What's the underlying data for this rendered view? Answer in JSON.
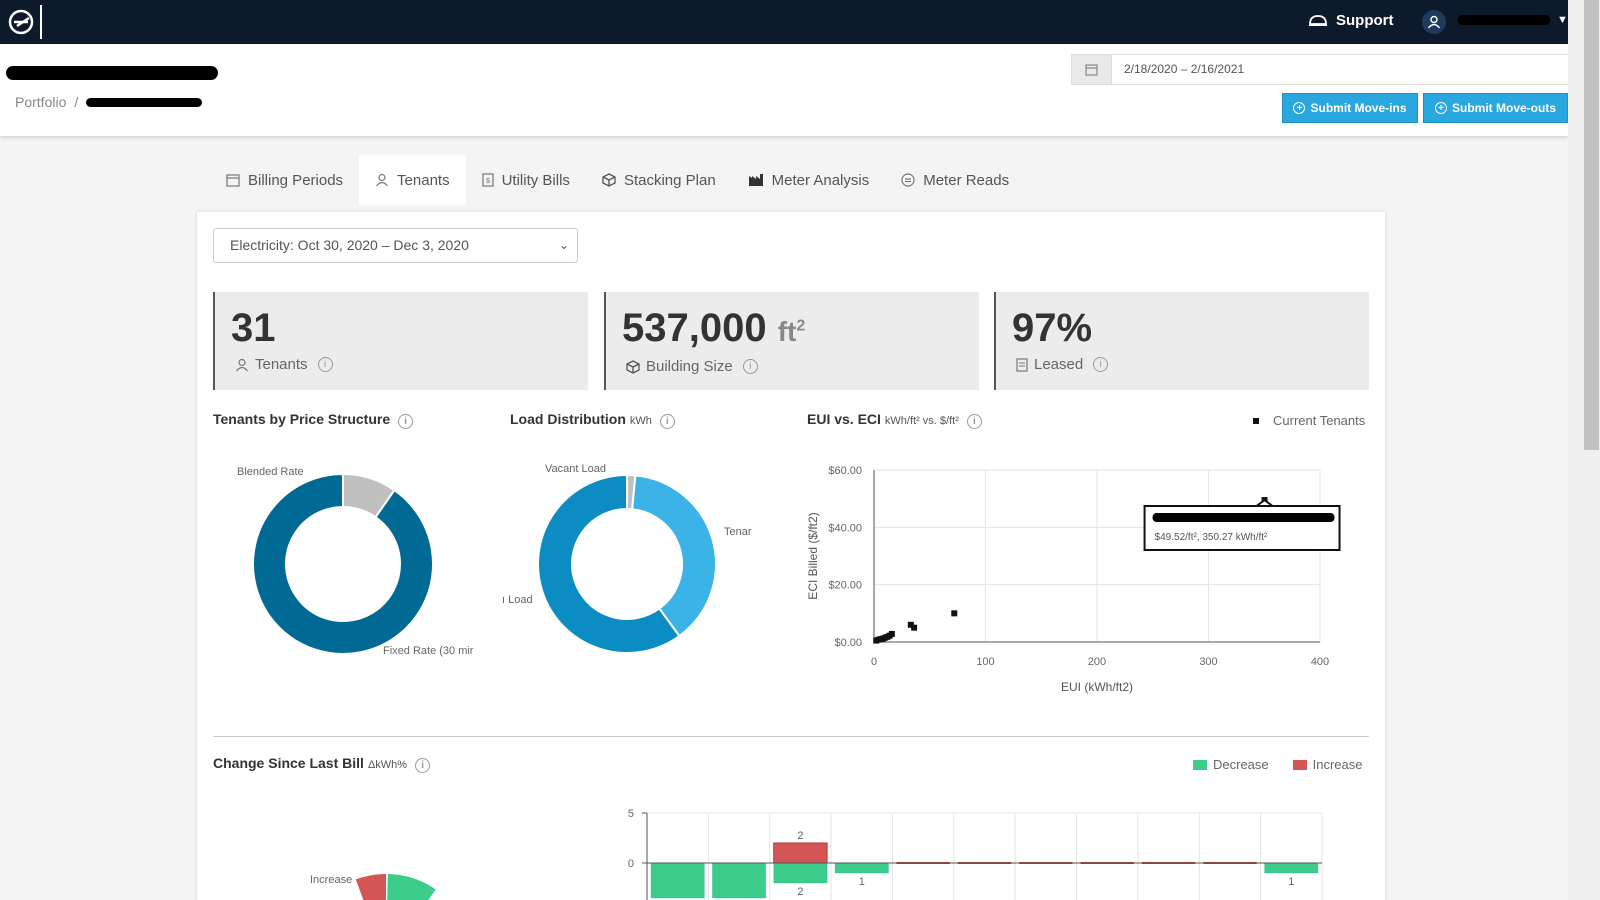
{
  "topbar": {
    "support_label": "Support"
  },
  "header": {
    "breadcrumb_root": "Portfolio",
    "breadcrumb_sep": "/",
    "date_range": "2/18/2020 – 2/16/2021",
    "submit_move_ins": "Submit Move-ins",
    "submit_move_outs": "Submit Move-outs"
  },
  "tabs": [
    {
      "label": "Billing Periods",
      "icon": "calendar-icon"
    },
    {
      "label": "Tenants",
      "icon": "user-icon",
      "active": true
    },
    {
      "label": "Utility Bills",
      "icon": "bill-icon"
    },
    {
      "label": "Stacking Plan",
      "icon": "cube-icon"
    },
    {
      "label": "Meter Analysis",
      "icon": "factory-icon"
    },
    {
      "label": "Meter Reads",
      "icon": "meter-icon"
    }
  ],
  "period_select": {
    "value": "Electricity: Oct 30, 2020 – Dec 3, 2020"
  },
  "stats": {
    "tenants": {
      "value": "31",
      "label": "Tenants"
    },
    "building": {
      "value": "537,000",
      "unit": "ft",
      "unit_sup": "2",
      "label": "Building Size"
    },
    "leased": {
      "value": "97%",
      "label": "Leased"
    }
  },
  "sections": {
    "price_structure": {
      "title": "Tenants by Price Structure"
    },
    "load_distribution": {
      "title": "Load Distribution",
      "unit": "kWh"
    },
    "eui_eci": {
      "title": "EUI vs. ECI",
      "unit": "kWh/ft² vs. $/ft²",
      "legend": "Current Tenants"
    },
    "change": {
      "title": "Change Since Last Bill",
      "unit": "ΔkWh%",
      "legend_decrease": "Decrease",
      "legend_increase": "Increase"
    }
  },
  "tooltip": {
    "value": "$49.52/ft², 350.27 kWh/ft²"
  },
  "colors": {
    "dark_blue": "#006994",
    "mid_blue": "#0b8dc3",
    "light_blue": "#3cb3e6",
    "gray": "#c0c0c0",
    "green": "#3ccc8c",
    "red": "#d45555",
    "accent": "#29a7df"
  },
  "chart_data": [
    {
      "type": "pie",
      "title": "Tenants by Price Structure",
      "labels": [
        "Blended Rate",
        "Fixed Rate (30 mir"
      ],
      "values": [
        3,
        28
      ],
      "colors": [
        "#c0c0c0",
        "#006994"
      ]
    },
    {
      "type": "pie",
      "title": "Load Distribution",
      "labels": [
        "Vacant Load",
        "Tenar",
        "ı Load"
      ],
      "values": [
        1.5,
        38.5,
        60
      ],
      "colors": [
        "#c0c0c0",
        "#3cb3e6",
        "#0b8dc3"
      ]
    },
    {
      "type": "scatter",
      "title": "EUI vs. ECI",
      "xlabel": "EUI (kWh/ft2)",
      "ylabel": "ECI Billed ($/ft2)",
      "xlim": [
        0,
        400
      ],
      "ylim": [
        0,
        60
      ],
      "xticks": [
        "0",
        "100",
        "200",
        "300",
        "400"
      ],
      "yticks": [
        "$0.00",
        "$20.00",
        "$40.00",
        "$60.00"
      ],
      "series": [
        {
          "name": "Current Tenants",
          "points": [
            [
              2,
              0.5
            ],
            [
              4,
              0.8
            ],
            [
              6,
              1
            ],
            [
              8,
              1.2
            ],
            [
              10,
              1.5
            ],
            [
              12,
              1.8
            ],
            [
              14,
              2.2
            ],
            [
              16,
              2.8
            ],
            [
              33,
              6
            ],
            [
              36,
              5
            ],
            [
              72,
              10
            ],
            [
              350.27,
              49.52
            ]
          ]
        }
      ]
    },
    {
      "type": "bar",
      "title": "Change Since Last Bill",
      "ylim": [
        -5,
        5
      ],
      "yticks": [
        "0",
        "5"
      ],
      "series": [
        {
          "name": "Decrease",
          "values": [
            -3.5,
            -3.5,
            -2,
            -1,
            0,
            0,
            0,
            0,
            0,
            0,
            -1
          ]
        },
        {
          "name": "Increase",
          "values": [
            0,
            0,
            2,
            0,
            0,
            0,
            0,
            0,
            0,
            0,
            0
          ]
        }
      ],
      "bar_labels": [
        "",
        "",
        "2",
        "1",
        "",
        "",
        "",
        "",
        "",
        "",
        "1"
      ],
      "bar_labels_below": [
        "",
        "",
        "2",
        "",
        "",
        "",
        "",
        "",
        "",
        "",
        ""
      ]
    },
    {
      "type": "pie",
      "title": "Change Since Last Bill",
      "labels": [
        "Increase"
      ],
      "values": [
        1
      ],
      "colors": [
        "#d45555"
      ]
    }
  ]
}
